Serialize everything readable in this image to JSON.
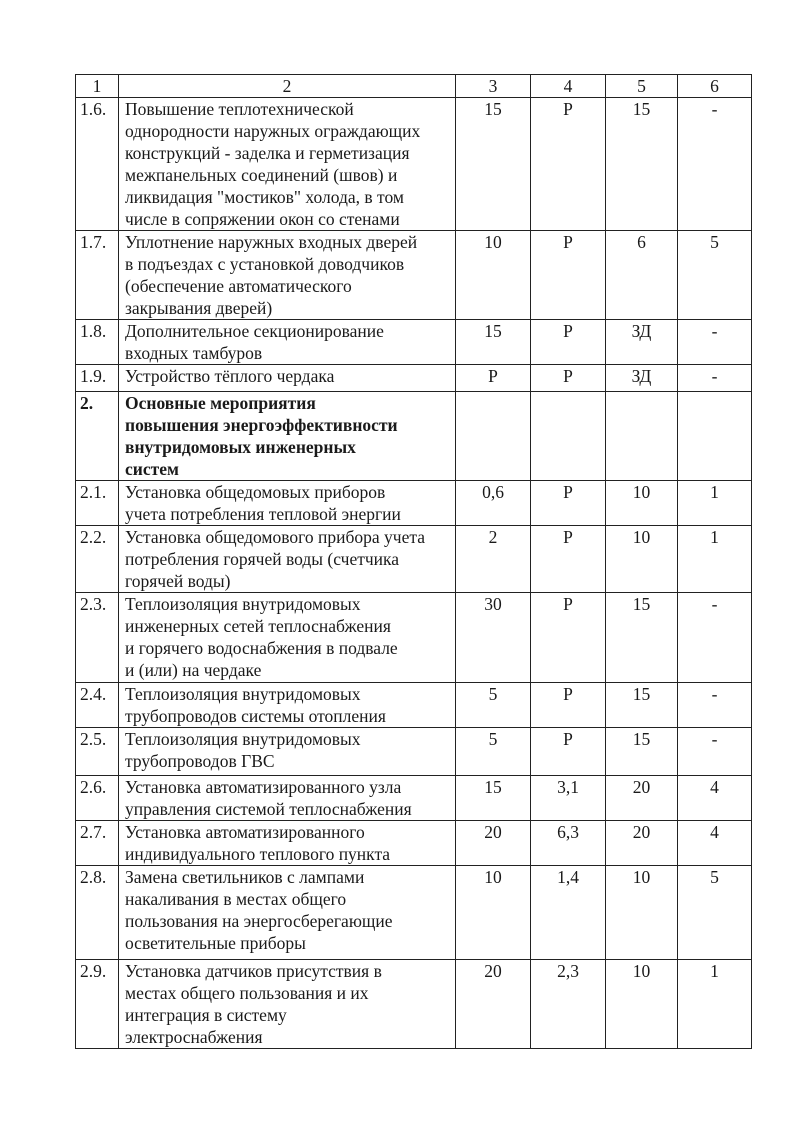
{
  "header": [
    "1",
    "2",
    "3",
    "4",
    "5",
    "6"
  ],
  "rows": [
    {
      "num": "1.6.",
      "text": "Повышение теплотехнической\nоднородности наружных ограждающих\nконструкций - заделка и герметизация\nмежпанельных соединений (швов) и\nликвидация \"мостиков\" холода, в том\nчисле в сопряжении окон со стенами",
      "c3": "15",
      "c4": "Р",
      "c5": "15",
      "c6": "-"
    },
    {
      "num": "1.7.",
      "text": "Уплотнение наружных входных дверей\nв подъездах с установкой доводчиков\n(обеспечение автоматического\nзакрывания дверей)",
      "c3": "10",
      "c4": "Р",
      "c5": "6",
      "c6": "5"
    },
    {
      "num": "1.8.",
      "text": "Дополнительное секционирование\nвходных тамбуров",
      "c3": "15",
      "c4": "Р",
      "c5": "ЗД",
      "c6": "-"
    },
    {
      "num": "1.9.",
      "text": "Устройство тёплого чердака",
      "c3": "Р",
      "c4": "Р",
      "c5": "ЗД",
      "c6": "-"
    },
    {
      "num": "2.",
      "text": "Основные мероприятия\nповышения энергоэффективности\nвнутридомовых инженерных\nсистем",
      "c3": "",
      "c4": "",
      "c5": "",
      "c6": "",
      "bold": true
    },
    {
      "num": "2.1.",
      "text": "Установка общедомовых приборов\nучета потребления тепловой энергии",
      "c3": "0,6",
      "c4": "Р",
      "c5": "10",
      "c6": "1"
    },
    {
      "num": "2.2.",
      "text": "Установка общедомового прибора учета\nпотребления горячей воды (счетчика\nгорячей воды)",
      "c3": "2",
      "c4": "Р",
      "c5": "10",
      "c6": "1"
    },
    {
      "num": "2.3.",
      "text": "Теплоизоляция внутридомовых\nинженерных сетей теплоснабжения\nи горячего водоснабжения в подвале\nи (или) на чердаке",
      "c3": "30",
      "c4": "Р",
      "c5": "15",
      "c6": "-"
    },
    {
      "num": "2.4.",
      "text": "Теплоизоляция внутридомовых\nтрубопроводов системы отопления",
      "c3": "5",
      "c4": "Р",
      "c5": "15",
      "c6": "-"
    },
    {
      "num": "2.5.",
      "text": "Теплоизоляция внутридомовых\nтрубопроводов ГВС",
      "c3": "5",
      "c4": "Р",
      "c5": "15",
      "c6": "-"
    },
    {
      "num": "2.6.",
      "text": "Установка автоматизированного узла\nуправления системой теплоснабжения",
      "c3": "15",
      "c4": "3,1",
      "c5": "20",
      "c6": "4"
    },
    {
      "num": "2.7.",
      "text": "Установка автоматизированного\nиндивидуального теплового пункта",
      "c3": "20",
      "c4": "6,3",
      "c5": "20",
      "c6": "4"
    },
    {
      "num": "2.8.",
      "text": "Замена светильников с лампами\nнакаливания в местах общего\nпользования на энергосберегающие\nосветительные приборы",
      "c3": "10",
      "c4": "1,4",
      "c5": "10",
      "c6": "5"
    },
    {
      "num": "2.9.",
      "text": "Установка датчиков присутствия в\nместах общего пользования и их\nинтеграция в систему\nэлектроснабжения",
      "c3": "20",
      "c4": "2,3",
      "c5": "10",
      "c6": "1"
    }
  ]
}
